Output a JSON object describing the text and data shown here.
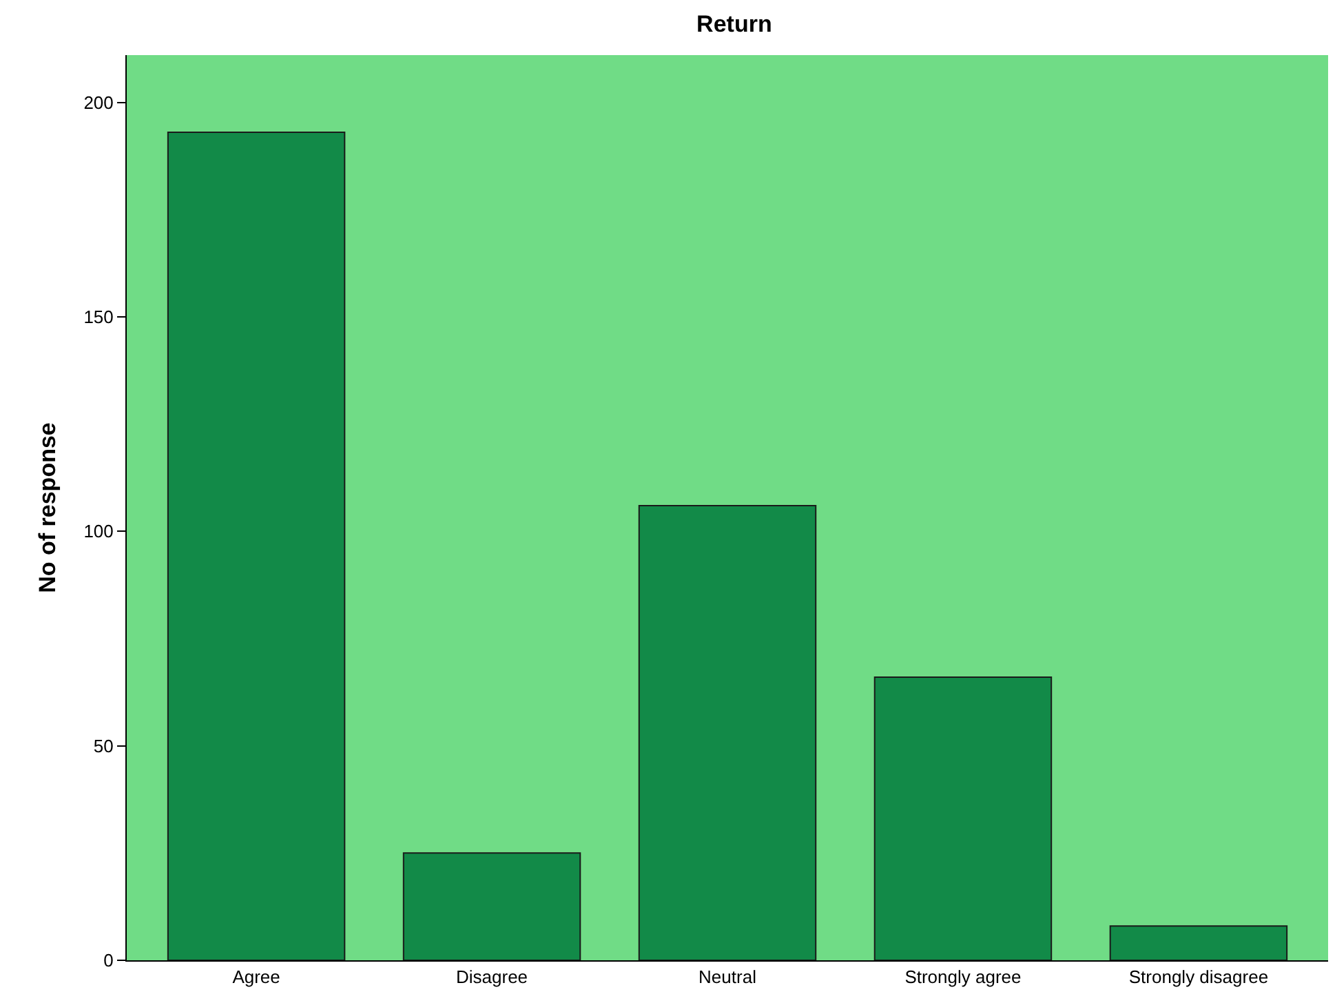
{
  "chart_data": {
    "type": "bar",
    "title": "Return",
    "ylabel": "No of response",
    "categories": [
      "Agree",
      "Disagree",
      "Neutral",
      "Strongly agree",
      "Strongly disagree"
    ],
    "values": [
      193,
      25,
      106,
      66,
      8
    ],
    "color": "#128a48",
    "ylim": [
      0,
      211
    ],
    "yticks": [
      0,
      50,
      100,
      150,
      200
    ],
    "grid": false,
    "legend": false
  }
}
